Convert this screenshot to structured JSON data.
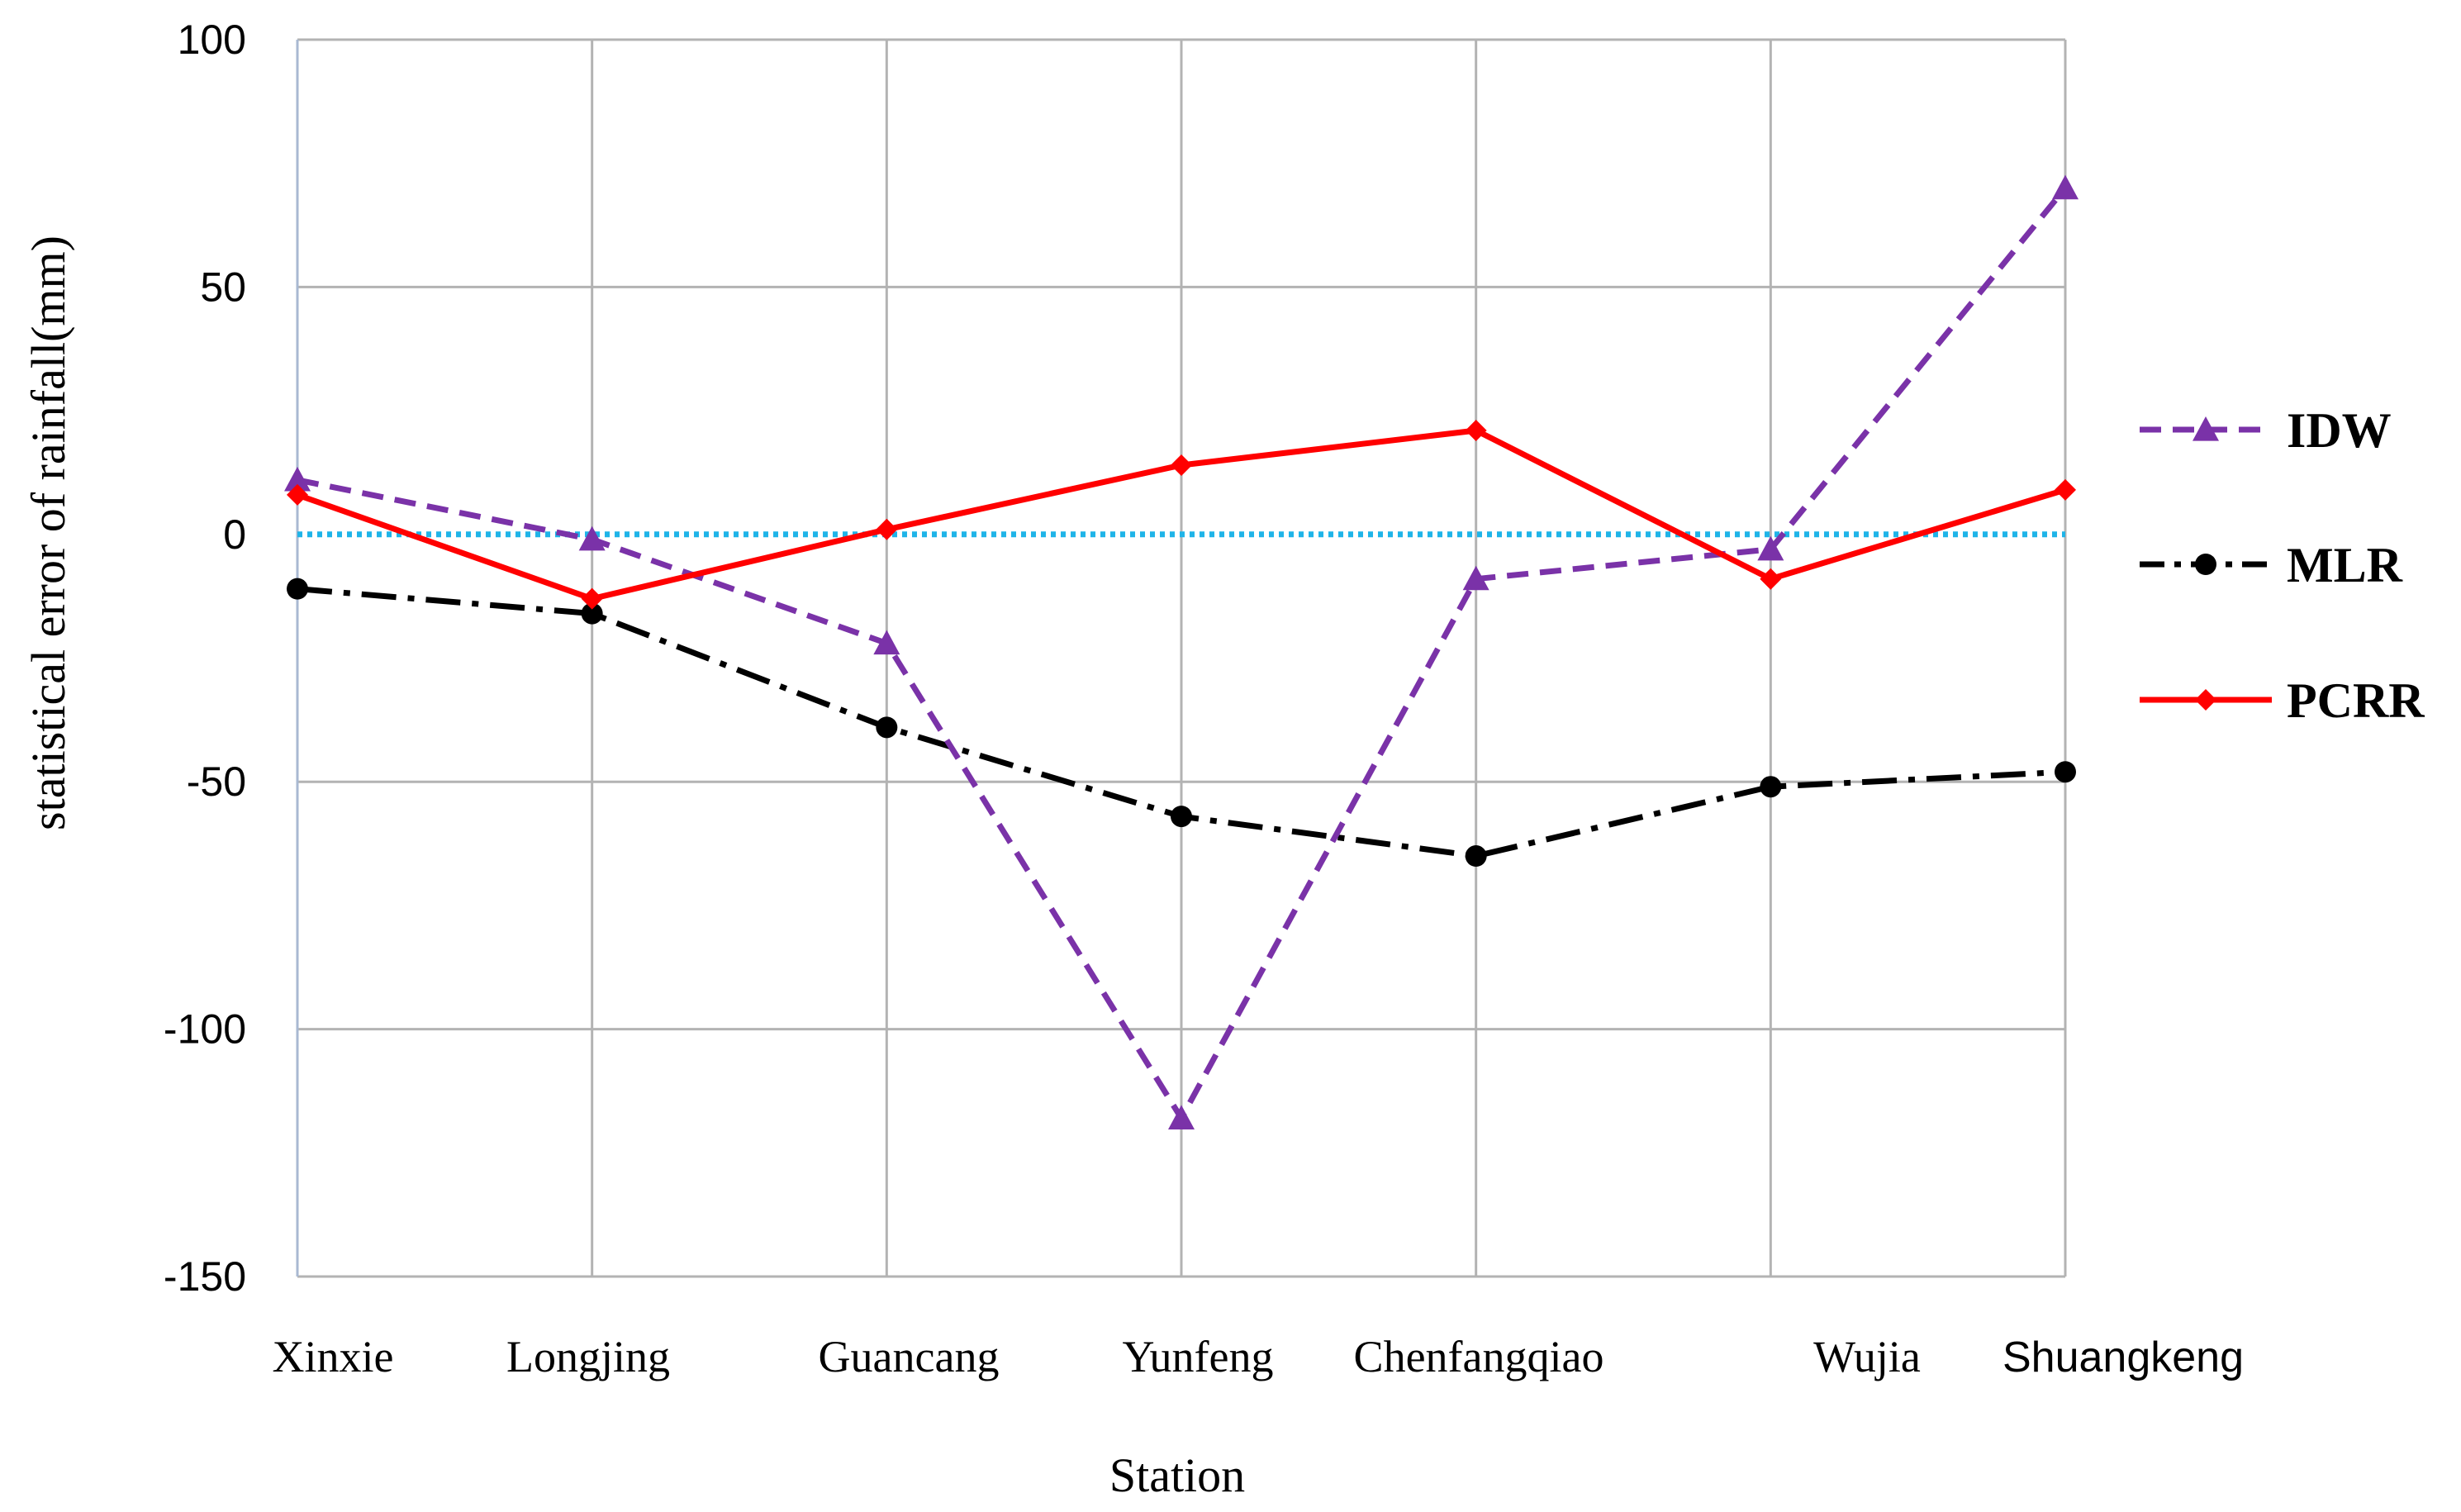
{
  "chart_data": {
    "type": "line",
    "title": "",
    "xlabel": "Station",
    "ylabel": "statistical  error  of rainfall(mm)",
    "categories": [
      "Xinxie",
      "Longjing",
      "Guancang",
      "Yunfeng",
      "Chenfangqiao",
      "Wujia",
      "Shuangkeng"
    ],
    "ylim": [
      -150,
      100
    ],
    "yticks": [
      100,
      50,
      0,
      -50,
      -100,
      -150
    ],
    "ytick_labels": [
      "100",
      "50",
      "0",
      "-50",
      "-100",
      "-150"
    ],
    "grid": true,
    "legend_position": "right",
    "zero_line_color": "#1fb4e8",
    "series": [
      {
        "name": "IDW",
        "color": "#7a32a8",
        "style": "dashed",
        "marker": "triangle",
        "values": [
          11,
          -1,
          -22,
          -118,
          -9,
          -3,
          70
        ]
      },
      {
        "name": "MLR",
        "color": "#000000",
        "style": "dashdot",
        "marker": "circle",
        "values": [
          -11,
          -16,
          -39,
          -57,
          -65,
          -51,
          -48
        ]
      },
      {
        "name": "PCRR",
        "color": "#ff0000",
        "style": "solid",
        "marker": "diamond",
        "values": [
          8,
          -13,
          1,
          14,
          21,
          -9,
          9
        ]
      }
    ]
  }
}
